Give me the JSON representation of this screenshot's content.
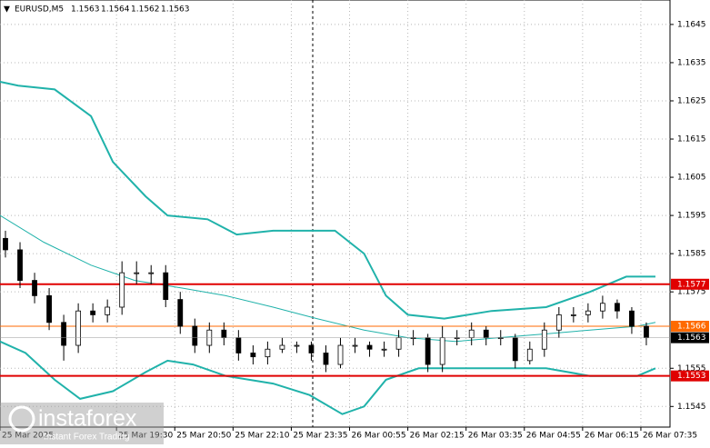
{
  "chart_data": {
    "type": "candlestick",
    "symbol": "EURUSD,M5",
    "header_ohlc": [
      1.1563,
      1.1564,
      1.1562,
      1.1563
    ],
    "x": [
      1,
      5,
      9,
      13,
      17,
      21,
      25,
      29,
      33,
      37,
      41,
      45,
      49,
      53,
      57,
      61,
      65,
      69,
      73,
      77,
      81,
      85,
      89,
      93,
      97,
      101,
      105,
      109,
      113,
      117,
      121,
      125,
      129,
      133,
      137,
      141,
      145,
      149,
      153,
      157,
      161,
      165,
      169,
      173,
      177
    ],
    "open": [
      1.1589,
      1.1586,
      1.1578,
      1.1574,
      1.1567,
      1.1561,
      1.157,
      1.1569,
      1.1571,
      1.158,
      1.158,
      1.158,
      1.1573,
      1.1566,
      1.1561,
      1.1565,
      1.1563,
      1.1559,
      1.1558,
      1.156,
      1.1561,
      1.1561,
      1.1559,
      1.1556,
      1.1561,
      1.1561,
      1.156,
      1.156,
      1.1563,
      1.1563,
      1.1556,
      1.1563,
      1.1563,
      1.1565,
      1.1563,
      1.1563,
      1.1557,
      1.156,
      1.1565,
      1.1569,
      1.1569,
      1.157,
      1.1572,
      1.157,
      1.1566
    ],
    "high": [
      1.1591,
      1.1588,
      1.158,
      1.1576,
      1.1569,
      1.1572,
      1.1572,
      1.1573,
      1.1583,
      1.1583,
      1.1582,
      1.1582,
      1.1575,
      1.1568,
      1.1567,
      1.1567,
      1.1565,
      1.1561,
      1.1562,
      1.1563,
      1.1562,
      1.1562,
      1.1561,
      1.1563,
      1.1563,
      1.1562,
      1.1562,
      1.1565,
      1.1565,
      1.1564,
      1.1566,
      1.1565,
      1.1567,
      1.1566,
      1.1565,
      1.1564,
      1.1562,
      1.1567,
      1.1571,
      1.1571,
      1.1572,
      1.1574,
      1.1573,
      1.1571,
      1.1567
    ],
    "low": [
      1.1584,
      1.1576,
      1.1572,
      1.1565,
      1.1557,
      1.1559,
      1.1567,
      1.1567,
      1.1569,
      1.1577,
      1.1577,
      1.1571,
      1.1564,
      1.1559,
      1.1559,
      1.1561,
      1.1557,
      1.1556,
      1.1556,
      1.1559,
      1.1559,
      1.1557,
      1.1554,
      1.1555,
      1.1559,
      1.1558,
      1.1558,
      1.1558,
      1.1561,
      1.1554,
      1.1554,
      1.1561,
      1.1561,
      1.1561,
      1.1561,
      1.1555,
      1.1556,
      1.1558,
      1.1563,
      1.1567,
      1.1567,
      1.1568,
      1.1568,
      1.1564,
      1.1561
    ],
    "close": [
      1.1586,
      1.1578,
      1.1574,
      1.1567,
      1.1561,
      1.157,
      1.1569,
      1.1571,
      1.158,
      1.158,
      1.158,
      1.1573,
      1.1566,
      1.1561,
      1.1565,
      1.1563,
      1.1559,
      1.1558,
      1.156,
      1.1561,
      1.1561,
      1.1559,
      1.1556,
      1.1561,
      1.1561,
      1.156,
      1.156,
      1.1563,
      1.1563,
      1.1556,
      1.1563,
      1.1563,
      1.1565,
      1.1563,
      1.1563,
      1.1557,
      1.156,
      1.1565,
      1.1569,
      1.1569,
      1.157,
      1.1572,
      1.157,
      1.1566,
      1.1563
    ],
    "bands": [
      {
        "color": "#20b2aa",
        "width": 2,
        "x": [
          0,
          5,
          15,
          25,
          31,
          40,
          46,
          57,
          65,
          75,
          92,
          100,
          106,
          112,
          122,
          135,
          150,
          162,
          172,
          180
        ],
        "values": [
          1.163,
          1.1629,
          1.1628,
          1.1621,
          1.1609,
          1.16,
          1.1595,
          1.1594,
          1.159,
          1.1591,
          1.1591,
          1.1585,
          1.1574,
          1.1569,
          1.1568,
          1.157,
          1.1571,
          1.1575,
          1.1579,
          1.1579
        ]
      },
      {
        "color": "#20b2aa",
        "width": 1,
        "x": [
          0,
          12,
          25,
          37,
          50,
          62,
          75,
          87,
          100,
          112,
          125,
          137,
          150,
          162,
          175,
          180
        ],
        "values": [
          1.1595,
          1.1588,
          1.1582,
          1.1578,
          1.1576,
          1.1574,
          1.1571,
          1.1568,
          1.1565,
          1.1563,
          1.1562,
          1.1563,
          1.1564,
          1.1565,
          1.1566,
          1.1567
        ]
      },
      {
        "color": "#20b2aa",
        "width": 2,
        "x": [
          0,
          7,
          15,
          22,
          31,
          40,
          46,
          53,
          62,
          75,
          85,
          94,
          100,
          106,
          115,
          130,
          150,
          162,
          175,
          180
        ],
        "values": [
          1.1562,
          1.1559,
          1.1552,
          1.1547,
          1.1549,
          1.1554,
          1.1557,
          1.1556,
          1.1553,
          1.1551,
          1.1548,
          1.1543,
          1.1545,
          1.1552,
          1.1555,
          1.1555,
          1.1555,
          1.1553,
          1.1553,
          1.1555
        ]
      }
    ],
    "levels": [
      {
        "value": 1.1577,
        "color": "#e00000",
        "width": 2
      },
      {
        "value": 1.1566,
        "color": "#ff6a00",
        "width": 1
      },
      {
        "value": 1.1553,
        "color": "#e00000",
        "width": 2
      }
    ],
    "bid": 1.1563,
    "xlim": [
      0,
      184
    ],
    "ylim": [
      1.15396,
      1.16514
    ],
    "yticks": [
      1.1545,
      1.1555,
      1.1575,
      1.1585,
      1.1595,
      1.1605,
      1.1615,
      1.1625,
      1.1635,
      1.1645
    ],
    "xticks": [
      {
        "value": 0,
        "label": "25 Mar 2025"
      },
      {
        "value": 32,
        "label": "25 Mar 19:30"
      },
      {
        "value": 48,
        "label": "25 Mar 20:50"
      },
      {
        "value": 64,
        "label": "25 Mar 22:10"
      },
      {
        "value": 80,
        "label": "25 Mar 23:35"
      },
      {
        "value": 96,
        "label": "26 Mar 00:55"
      },
      {
        "value": 112,
        "label": "26 Mar 02:15"
      },
      {
        "value": 128,
        "label": "26 Mar 03:35"
      },
      {
        "value": 144,
        "label": "26 Mar 04:55"
      },
      {
        "value": 160,
        "label": "26 Mar 06:15"
      },
      {
        "value": 176,
        "label": "26 Mar 07:35"
      }
    ],
    "grid": true
  },
  "watermark": {
    "brand": "instaforex",
    "tagline": "Instant Forex Trading"
  }
}
